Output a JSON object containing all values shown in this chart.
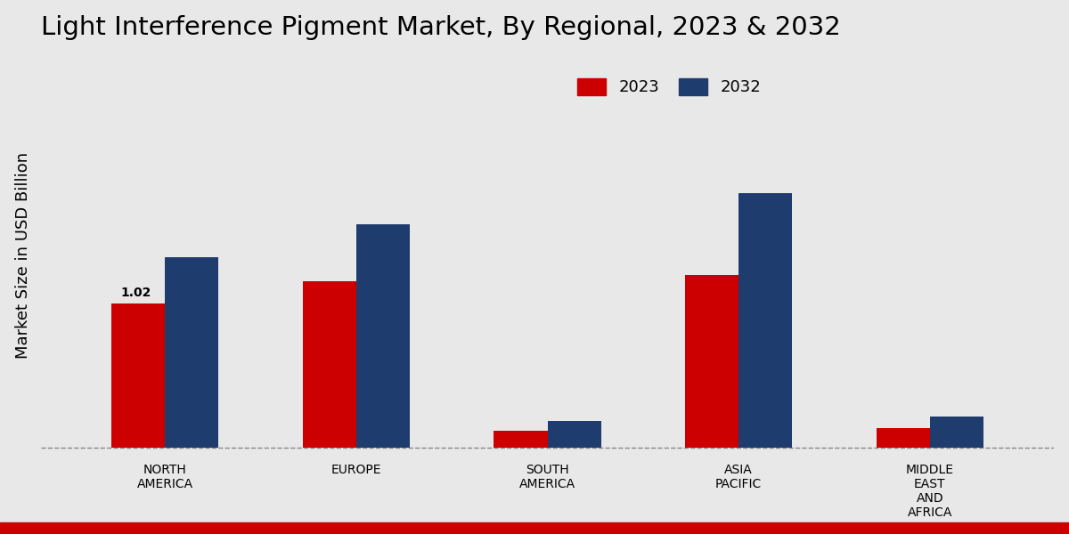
{
  "title": "Light Interference Pigment Market, By Regional, 2023 & 2032",
  "ylabel": "Market Size in USD Billion",
  "categories": [
    "NORTH\nAMERICA",
    "EUROPE",
    "SOUTH\nAMERICA",
    "ASIA\nPACIFIC",
    "MIDDLE\nEAST\nAND\nAFRICA"
  ],
  "values_2023": [
    1.02,
    1.18,
    0.12,
    1.22,
    0.14
  ],
  "values_2032": [
    1.35,
    1.58,
    0.19,
    1.8,
    0.22
  ],
  "color_2023": "#cc0000",
  "color_2032": "#1f3c6e",
  "annotation_value": "1.02",
  "annotation_bar": 0,
  "background_color_top": "#d0d0d0",
  "background_color_mid": "#e8e8e8",
  "background_color_bot": "#f5f5f5",
  "bar_width": 0.28,
  "legend_labels": [
    "2023",
    "2032"
  ],
  "title_fontsize": 21,
  "axis_label_fontsize": 13,
  "tick_fontsize": 10,
  "legend_fontsize": 13,
  "red_bottom_bar_color": "#cc0000"
}
